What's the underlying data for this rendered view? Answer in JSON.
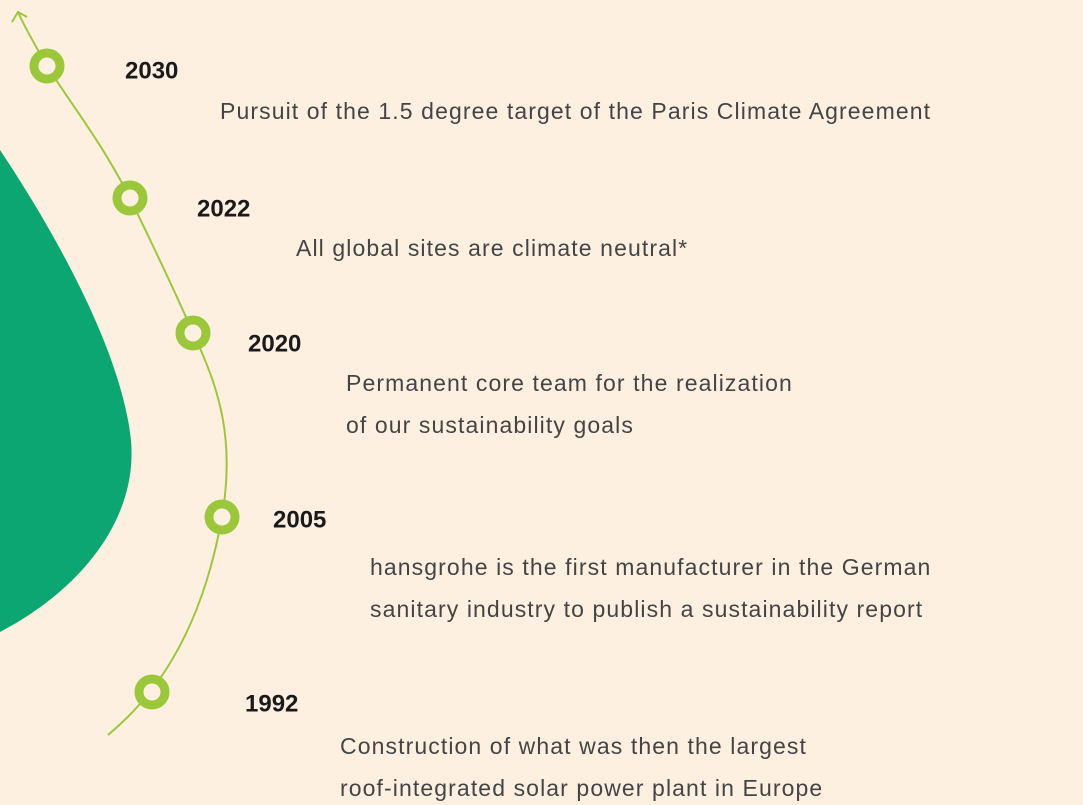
{
  "timeline": [
    {
      "year": "2030",
      "lines": [
        "Pursuit of the 1.5 degree target of the Paris Climate Agreement"
      ]
    },
    {
      "year": "2022",
      "lines": [
        "All global sites are climate neutral*"
      ]
    },
    {
      "year": "2020",
      "lines": [
        "Permanent core team for the realization",
        "of our sustainability goals"
      ]
    },
    {
      "year": "2005",
      "lines": [
        "hansgrohe is the first manufacturer in the German",
        "sanitary industry to publish a sustainability report"
      ]
    },
    {
      "year": "1992",
      "lines": [
        "Construction of what was then the largest",
        "roof-integrated solar power plant in Europe"
      ]
    }
  ]
}
